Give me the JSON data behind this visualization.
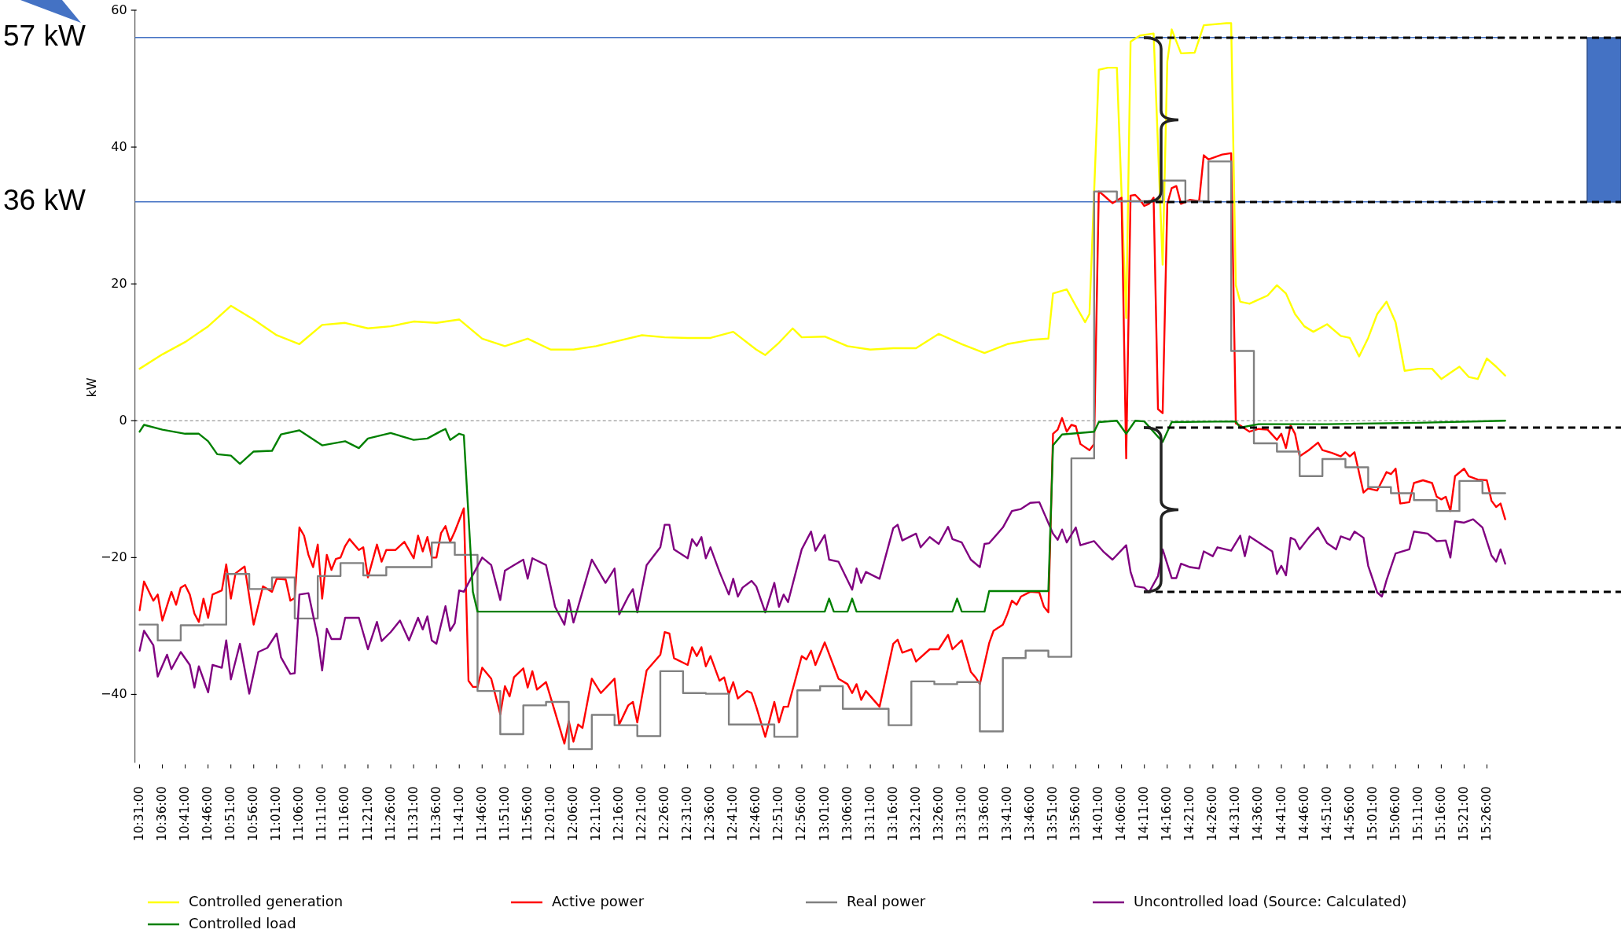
{
  "chart_data": {
    "type": "line",
    "ylabel": "kW",
    "xlim": [
      10.5,
      15.5
    ],
    "ylim": [
      -50,
      60
    ],
    "yticks": [
      {
        "value": -40,
        "label": "−40"
      },
      {
        "value": -20,
        "label": "−20"
      },
      0,
      20,
      40,
      60
    ],
    "xticks": [
      {
        "value": 10.516667,
        "label": "10:31:00"
      },
      {
        "value": 10.6,
        "label": "10:36:00"
      },
      {
        "value": 10.683333,
        "label": "10:41:00"
      },
      {
        "value": 10.766667,
        "label": "10:46:00"
      },
      {
        "value": 10.85,
        "label": "10:51:00"
      },
      {
        "value": 10.933333,
        "label": "10:56:00"
      },
      {
        "value": 11.016667,
        "label": "11:01:00"
      },
      {
        "value": 11.1,
        "label": "11:06:00"
      },
      {
        "value": 11.183333,
        "label": "11:11:00"
      },
      {
        "value": 11.266667,
        "label": "11:16:00"
      },
      {
        "value": 11.35,
        "label": "11:21:00"
      },
      {
        "value": 11.433333,
        "label": "11:26:00"
      },
      {
        "value": 11.516667,
        "label": "11:31:00"
      },
      {
        "value": 11.6,
        "label": "11:36:00"
      },
      {
        "value": 11.683333,
        "label": "11:41:00"
      },
      {
        "value": 11.766667,
        "label": "11:46:00"
      },
      {
        "value": 11.85,
        "label": "11:51:00"
      },
      {
        "value": 11.933333,
        "label": "11:56:00"
      },
      {
        "value": 12.016667,
        "label": "12:01:00"
      },
      {
        "value": 12.1,
        "label": "12:06:00"
      },
      {
        "value": 12.183333,
        "label": "12:11:00"
      },
      {
        "value": 12.266667,
        "label": "12:16:00"
      },
      {
        "value": 12.35,
        "label": "12:21:00"
      },
      {
        "value": 12.433333,
        "label": "12:26:00"
      },
      {
        "value": 12.516667,
        "label": "12:31:00"
      },
      {
        "value": 12.6,
        "label": "12:36:00"
      },
      {
        "value": 12.683333,
        "label": "12:41:00"
      },
      {
        "value": 12.766667,
        "label": "12:46:00"
      },
      {
        "value": 12.85,
        "label": "12:51:00"
      },
      {
        "value": 12.933333,
        "label": "12:56:00"
      },
      {
        "value": 13.016667,
        "label": "13:01:00"
      },
      {
        "value": 13.1,
        "label": "13:06:00"
      },
      {
        "value": 13.183333,
        "label": "13:11:00"
      },
      {
        "value": 13.266667,
        "label": "13:16:00"
      },
      {
        "value": 13.35,
        "label": "13:21:00"
      },
      {
        "value": 13.433333,
        "label": "13:26:00"
      },
      {
        "value": 13.516667,
        "label": "13:31:00"
      },
      {
        "value": 13.6,
        "label": "13:36:00"
      },
      {
        "value": 13.683333,
        "label": "13:41:00"
      },
      {
        "value": 13.766667,
        "label": "13:46:00"
      },
      {
        "value": 13.85,
        "label": "13:51:00"
      },
      {
        "value": 13.933333,
        "label": "13:56:00"
      },
      {
        "value": 14.016667,
        "label": "14:01:00"
      },
      {
        "value": 14.1,
        "label": "14:06:00"
      },
      {
        "value": 14.183333,
        "label": "14:11:00"
      },
      {
        "value": 14.266667,
        "label": "14:16:00"
      },
      {
        "value": 14.35,
        "label": "14:21:00"
      },
      {
        "value": 14.433333,
        "label": "14:26:00"
      },
      {
        "value": 14.516667,
        "label": "14:31:00"
      },
      {
        "value": 14.6,
        "label": "14:36:00"
      },
      {
        "value": 14.683333,
        "label": "14:41:00"
      },
      {
        "value": 14.766667,
        "label": "14:46:00"
      },
      {
        "value": 14.85,
        "label": "14:51:00"
      },
      {
        "value": 14.933333,
        "label": "14:56:00"
      },
      {
        "value": 15.016667,
        "label": "15:01:00"
      },
      {
        "value": 15.1,
        "label": "15:06:00"
      },
      {
        "value": 15.183333,
        "label": "15:11:00"
      },
      {
        "value": 15.266667,
        "label": "15:16:00"
      },
      {
        "value": 15.35,
        "label": "15:21:00"
      },
      {
        "value": 15.433333,
        "label": "15:26:00"
      }
    ],
    "legend": "bottom",
    "series": [
      {
        "name": "Controlled generation",
        "color": "#ffff00",
        "x": [
          10.517,
          10.6,
          10.683,
          10.767,
          10.85,
          10.933,
          11.017,
          11.1,
          11.183,
          11.267,
          11.35,
          11.433,
          11.517,
          11.6,
          11.683,
          11.767,
          11.85,
          11.933,
          12.017,
          12.1,
          12.183,
          12.267,
          12.35,
          12.433,
          12.517,
          12.6,
          12.683,
          12.767,
          12.8,
          12.85,
          12.9,
          12.933,
          13.017,
          13.1,
          13.183,
          13.267,
          13.35,
          13.433,
          13.517,
          13.6,
          13.683,
          13.767,
          13.833,
          13.85,
          13.9,
          13.933,
          13.967,
          13.983,
          14.017,
          14.05,
          14.083,
          14.117,
          14.133,
          14.167,
          14.217,
          14.25,
          14.267,
          14.283,
          14.317,
          14.367,
          14.4,
          14.483,
          14.5,
          14.517,
          14.533,
          14.567,
          14.6,
          14.633,
          14.667,
          14.7,
          14.733,
          14.767,
          14.8,
          14.85,
          14.9,
          14.933,
          14.967,
          15,
          15.033,
          15.067,
          15.1,
          15.133,
          15.183,
          15.233,
          15.267,
          15.3,
          15.333,
          15.367,
          15.4,
          15.433,
          15.467,
          15.5
        ],
        "values": [
          7.6,
          9.7,
          11.5,
          13.8,
          16.8,
          14.8,
          12.5,
          11.2,
          14.0,
          14.3,
          13.5,
          13.8,
          14.5,
          14.3,
          14.8,
          12.0,
          10.9,
          12.0,
          10.4,
          10.4,
          10.9,
          11.7,
          12.5,
          12.2,
          12.1,
          12.1,
          13.0,
          10.4,
          9.6,
          11.4,
          13.5,
          12.2,
          12.3,
          10.9,
          10.4,
          10.6,
          10.6,
          12.7,
          11.2,
          9.9,
          11.2,
          11.8,
          12.0,
          18.6,
          19.2,
          16.8,
          14.4,
          15.6,
          51.3,
          51.6,
          51.6,
          15.0,
          55.4,
          56.3,
          56.6,
          22.8,
          52.5,
          57.2,
          53.7,
          53.8,
          57.8,
          58.1,
          58.1,
          19.8,
          17.4,
          17.1,
          17.7,
          18.3,
          19.8,
          18.6,
          15.6,
          13.8,
          13.0,
          14.1,
          12.4,
          12.1,
          9.4,
          12.1,
          15.6,
          17.4,
          14.4,
          7.3,
          7.6,
          7.6,
          6.1,
          7.0,
          7.9,
          6.4,
          6.1,
          9.1,
          7.9,
          6.6
        ]
      },
      {
        "name": "Active power",
        "color": "#ff0000",
        "x": [
          10.517,
          10.533,
          10.567,
          10.583,
          10.6,
          10.633,
          10.65,
          10.667,
          10.683,
          10.7,
          10.717,
          10.733,
          10.75,
          10.767,
          10.783,
          10.817,
          10.833,
          10.85,
          10.867,
          10.9,
          10.933,
          10.967,
          11.0,
          11.017,
          11.05,
          11.067,
          11.083,
          11.1,
          11.117,
          11.133,
          11.15,
          11.167,
          11.183,
          11.2,
          11.217,
          11.233,
          11.25,
          11.267,
          11.283,
          11.317,
          11.333,
          11.35,
          11.383,
          11.4,
          11.417,
          11.45,
          11.483,
          11.517,
          11.533,
          11.55,
          11.567,
          11.583,
          11.6,
          11.617,
          11.633,
          11.65,
          11.667,
          11.7,
          11.717,
          11.733,
          11.75,
          11.767,
          11.8,
          11.833,
          11.85,
          11.867,
          11.883,
          11.917,
          11.933,
          11.95,
          11.967,
          12.0,
          12.033,
          12.067,
          12.083,
          12.1,
          12.117,
          12.133,
          12.167,
          12.2,
          12.25,
          12.267,
          12.3,
          12.317,
          12.333,
          12.367,
          12.417,
          12.433,
          12.45,
          12.467,
          12.517,
          12.533,
          12.55,
          12.567,
          12.583,
          12.6,
          12.633,
          12.65,
          12.667,
          12.683,
          12.7,
          12.733,
          12.75,
          12.767,
          12.8,
          12.833,
          12.85,
          12.867,
          12.883,
          12.933,
          12.95,
          12.967,
          12.983,
          13.017,
          13.05,
          13.067,
          13.1,
          13.117,
          13.133,
          13.15,
          13.167,
          13.217,
          13.267,
          13.283,
          13.3,
          13.333,
          13.35,
          13.4,
          13.433,
          13.467,
          13.483,
          13.517,
          13.55,
          13.567,
          13.583,
          13.617,
          13.633,
          13.667,
          13.683,
          13.7,
          13.717,
          13.733,
          13.767,
          13.8,
          13.817,
          13.833,
          13.85,
          13.867,
          13.883,
          13.9,
          13.917,
          13.933,
          13.95,
          13.983,
          14.0,
          14.017,
          14.033,
          14.067,
          14.1,
          14.117,
          14.133,
          14.15,
          14.167,
          14.183,
          14.2,
          14.217,
          14.233,
          14.25,
          14.267,
          14.283,
          14.3,
          14.317,
          14.35,
          14.383,
          14.4,
          14.417,
          14.467,
          14.5,
          14.517,
          14.533,
          14.567,
          14.6,
          14.633,
          14.667,
          14.683,
          14.7,
          14.717,
          14.733,
          14.75,
          14.783,
          14.817,
          14.833,
          14.867,
          14.9,
          14.917,
          14.933,
          14.95,
          14.983,
          15.0,
          15.033,
          15.067,
          15.083,
          15.1,
          15.117,
          15.15,
          15.167,
          15.2,
          15.233,
          15.25,
          15.267,
          15.283,
          15.3,
          15.317,
          15.35,
          15.367,
          15.4,
          15.433,
          15.45,
          15.467,
          15.483,
          15.5
        ],
        "values": [
          -27.7,
          -23.5,
          -26.3,
          -25.4,
          -29.2,
          -25.0,
          -26.9,
          -24.4,
          -24.0,
          -25.4,
          -28.2,
          -29.4,
          -26.0,
          -28.8,
          -25.4,
          -24.8,
          -21.0,
          -26.0,
          -22.3,
          -21.3,
          -29.8,
          -24.2,
          -25.0,
          -23.1,
          -23.2,
          -26.3,
          -25.9,
          -15.6,
          -16.8,
          -19.6,
          -21.4,
          -18.1,
          -26.0,
          -19.6,
          -21.8,
          -20.2,
          -20.0,
          -18.3,
          -17.3,
          -18.9,
          -18.5,
          -22.9,
          -18.1,
          -20.6,
          -18.9,
          -18.9,
          -17.7,
          -20.1,
          -16.8,
          -19.1,
          -17.0,
          -20.0,
          -20.0,
          -16.4,
          -15.4,
          -17.7,
          -16.2,
          -12.8,
          -38.0,
          -38.9,
          -38.9,
          -36.1,
          -37.7,
          -42.9,
          -38.8,
          -40.3,
          -37.5,
          -36.2,
          -39.0,
          -36.6,
          -39.3,
          -38.2,
          -42.6,
          -47.2,
          -43.9,
          -46.9,
          -44.4,
          -44.9,
          -37.7,
          -39.8,
          -37.7,
          -44.4,
          -41.6,
          -41.1,
          -44.1,
          -36.5,
          -34.2,
          -30.9,
          -31.1,
          -34.7,
          -35.7,
          -33.1,
          -34.4,
          -33.1,
          -35.9,
          -34.4,
          -38.0,
          -37.5,
          -40.0,
          -38.2,
          -40.6,
          -39.5,
          -39.8,
          -41.8,
          -46.2,
          -41.1,
          -44.1,
          -41.8,
          -41.8,
          -34.4,
          -34.9,
          -33.6,
          -35.7,
          -32.4,
          -35.9,
          -37.7,
          -38.5,
          -39.8,
          -38.5,
          -40.8,
          -39.5,
          -41.8,
          -32.6,
          -32.0,
          -33.9,
          -33.4,
          -35.2,
          -33.4,
          -33.4,
          -31.3,
          -33.4,
          -32.1,
          -36.7,
          -37.5,
          -38.5,
          -32.5,
          -30.7,
          -29.8,
          -28.3,
          -26.3,
          -26.9,
          -25.7,
          -25.0,
          -25.1,
          -27.2,
          -28.0,
          -1.9,
          -1.3,
          0.4,
          -1.6,
          -0.6,
          -0.8,
          -3.4,
          -4.3,
          -3.4,
          33.5,
          33.0,
          31.8,
          32.6,
          -5.5,
          32.9,
          33.0,
          32.3,
          31.4,
          31.7,
          32.6,
          1.7,
          1.1,
          31.7,
          34.0,
          34.3,
          31.7,
          32.3,
          32.1,
          38.8,
          38.2,
          38.9,
          39.1,
          -0.4,
          -0.7,
          -1.6,
          -1.2,
          -1.3,
          -2.8,
          -1.9,
          -4.0,
          -0.7,
          -1.9,
          -5.2,
          -4.3,
          -3.2,
          -4.3,
          -4.7,
          -5.2,
          -4.6,
          -5.2,
          -4.6,
          -10.5,
          -9.9,
          -10.2,
          -7.5,
          -7.8,
          -7.0,
          -12.1,
          -11.9,
          -9.1,
          -8.7,
          -9.1,
          -11.1,
          -11.5,
          -11.1,
          -13.2,
          -8.1,
          -7.0,
          -8.1,
          -8.6,
          -8.7,
          -11.7,
          -12.6,
          -12.1,
          -14.4
        ]
      },
      {
        "name": "Real power",
        "type": "step",
        "color": "#808080",
        "x": [
          10.517,
          10.583,
          10.667,
          10.75,
          10.833,
          10.917,
          11,
          11.083,
          11.167,
          11.25,
          11.333,
          11.417,
          11.5,
          11.583,
          11.667,
          11.75,
          11.833,
          11.917,
          12,
          12.083,
          12.167,
          12.25,
          12.333,
          12.417,
          12.5,
          12.583,
          12.667,
          12.75,
          12.833,
          12.917,
          13,
          13.083,
          13.167,
          13.25,
          13.333,
          13.417,
          13.5,
          13.583,
          13.667,
          13.75,
          13.833,
          13.917,
          14,
          14.083,
          14.167,
          14.25,
          14.333,
          14.417,
          14.5,
          14.583,
          14.667,
          14.75,
          14.833,
          14.917,
          15,
          15.083,
          15.167,
          15.25,
          15.333,
          15.417,
          15.5
        ],
        "values": [
          -29.8,
          -32.1,
          -29.9,
          -29.8,
          -22.4,
          -24.6,
          -22.9,
          -28.9,
          -22.7,
          -20.8,
          -22.6,
          -21.4,
          -21.4,
          -17.8,
          -19.6,
          -39.5,
          -45.8,
          -41.6,
          -41.1,
          -48.0,
          -43.0,
          -44.5,
          -46.1,
          -36.6,
          -39.8,
          -39.9,
          -44.4,
          -44.4,
          -46.2,
          -39.4,
          -38.8,
          -42.1,
          -42.1,
          -44.5,
          -38.1,
          -38.5,
          -38.2,
          -45.4,
          -34.7,
          -33.6,
          -34.5,
          -5.5,
          33.5,
          32.1,
          32.1,
          35.1,
          32.1,
          37.9,
          10.2,
          -3.3,
          -4.5,
          -8.1,
          -5.6,
          -6.8,
          -9.7,
          -10.6,
          -11.6,
          -13.2,
          -8.8,
          -10.6,
          -10.6
        ]
      },
      {
        "name": "Uncontrolled load (Source: Calculated)",
        "color": "#800080",
        "x": [
          10.517,
          10.533,
          10.567,
          10.583,
          10.617,
          10.633,
          10.667,
          10.7,
          10.717,
          10.733,
          10.767,
          10.783,
          10.817,
          10.833,
          10.85,
          10.883,
          10.917,
          10.95,
          10.983,
          11.017,
          11.033,
          11.067,
          11.083,
          11.1,
          11.133,
          11.167,
          11.183,
          11.2,
          11.217,
          11.25,
          11.267,
          11.317,
          11.35,
          11.383,
          11.4,
          11.433,
          11.467,
          11.5,
          11.533,
          11.55,
          11.567,
          11.583,
          11.6,
          11.633,
          11.65,
          11.667,
          11.683,
          11.7,
          11.717,
          11.767,
          11.8,
          11.833,
          11.85,
          11.883,
          11.917,
          11.933,
          11.95,
          12.0,
          12.033,
          12.067,
          12.083,
          12.1,
          12.117,
          12.167,
          12.217,
          12.25,
          12.267,
          12.3,
          12.317,
          12.333,
          12.367,
          12.417,
          12.433,
          12.45,
          12.467,
          12.517,
          12.533,
          12.55,
          12.567,
          12.583,
          12.6,
          12.633,
          12.667,
          12.683,
          12.7,
          12.717,
          12.75,
          12.767,
          12.8,
          12.833,
          12.85,
          12.867,
          12.883,
          12.933,
          12.967,
          12.983,
          13.017,
          13.033,
          13.067,
          13.117,
          13.133,
          13.15,
          13.167,
          13.217,
          13.267,
          13.283,
          13.3,
          13.35,
          13.367,
          13.4,
          13.433,
          13.467,
          13.483,
          13.517,
          13.55,
          13.583,
          13.6,
          13.617,
          13.667,
          13.7,
          13.733,
          13.767,
          13.8,
          13.85,
          13.867,
          13.883,
          13.9,
          13.933,
          13.95,
          14.0,
          14.033,
          14.067,
          14.117,
          14.133,
          14.15,
          14.183,
          14.2,
          14.233,
          14.25,
          14.283,
          14.3,
          14.317,
          14.35,
          14.383,
          14.4,
          14.433,
          14.45,
          14.5,
          14.533,
          14.55,
          14.567,
          14.65,
          14.667,
          14.683,
          14.7,
          14.717,
          14.733,
          14.75,
          14.783,
          14.817,
          14.85,
          14.883,
          14.9,
          14.933,
          14.95,
          14.983,
          15.0,
          15.033,
          15.05,
          15.067,
          15.1,
          15.15,
          15.167,
          15.217,
          15.25,
          15.283,
          15.3,
          15.317,
          15.35,
          15.383,
          15.417,
          15.45,
          15.467,
          15.483,
          15.5
        ],
        "values": [
          -33.6,
          -30.7,
          -32.8,
          -37.4,
          -34.2,
          -36.3,
          -33.8,
          -35.7,
          -39.0,
          -35.9,
          -39.7,
          -35.7,
          -36.1,
          -32.1,
          -37.8,
          -32.6,
          -39.9,
          -33.8,
          -33.2,
          -31.1,
          -34.6,
          -37.0,
          -36.9,
          -25.4,
          -25.2,
          -31.7,
          -36.5,
          -30.4,
          -31.9,
          -31.9,
          -28.8,
          -28.8,
          -33.4,
          -29.4,
          -32.2,
          -30.9,
          -29.2,
          -32.1,
          -28.8,
          -30.5,
          -28.6,
          -32.1,
          -32.6,
          -27.1,
          -30.7,
          -29.6,
          -24.8,
          -25.0,
          -23.7,
          -20.0,
          -21.1,
          -26.2,
          -21.9,
          -21.1,
          -20.3,
          -23.1,
          -20.1,
          -21.1,
          -27.2,
          -29.8,
          -26.2,
          -29.5,
          -27.2,
          -20.3,
          -23.7,
          -21.6,
          -28.3,
          -25.7,
          -24.6,
          -28.0,
          -21.1,
          -18.5,
          -15.2,
          -15.2,
          -18.8,
          -20.1,
          -17.3,
          -18.3,
          -17.0,
          -20.1,
          -18.5,
          -22.1,
          -25.4,
          -23.1,
          -25.7,
          -24.4,
          -23.4,
          -24.2,
          -28.0,
          -23.7,
          -27.2,
          -25.4,
          -26.5,
          -18.8,
          -16.2,
          -19.0,
          -16.7,
          -20.3,
          -20.6,
          -24.7,
          -21.6,
          -23.7,
          -22.1,
          -23.1,
          -15.7,
          -15.2,
          -17.5,
          -16.5,
          -18.5,
          -17.0,
          -18.0,
          -15.5,
          -17.3,
          -17.8,
          -20.3,
          -21.4,
          -18.0,
          -17.9,
          -15.6,
          -13.2,
          -12.9,
          -12.0,
          -11.9,
          -16.5,
          -17.4,
          -15.9,
          -17.8,
          -15.6,
          -18.2,
          -17.6,
          -19.1,
          -20.3,
          -18.2,
          -22.1,
          -24.2,
          -24.4,
          -25.1,
          -22.7,
          -18.8,
          -23.0,
          -23.0,
          -20.9,
          -21.4,
          -21.6,
          -19.1,
          -19.8,
          -18.5,
          -19.0,
          -16.8,
          -19.8,
          -16.9,
          -19.1,
          -22.4,
          -21.2,
          -22.6,
          -17.1,
          -17.4,
          -18.8,
          -17.1,
          -15.6,
          -17.9,
          -18.8,
          -16.9,
          -17.4,
          -16.2,
          -17.1,
          -21.2,
          -25.1,
          -25.7,
          -23.3,
          -19.4,
          -18.8,
          -16.2,
          -16.5,
          -17.6,
          -17.5,
          -20.0,
          -14.7,
          -14.9,
          -14.4,
          -15.6,
          -19.7,
          -20.6,
          -18.8,
          -20.9
        ]
      },
      {
        "name": "Controlled load",
        "color": "#008000",
        "x": [
          10.517,
          10.533,
          10.6,
          10.683,
          10.733,
          10.767,
          10.8,
          10.85,
          10.883,
          10.933,
          11.0,
          11.033,
          11.1,
          11.183,
          11.267,
          11.317,
          11.35,
          11.433,
          11.517,
          11.567,
          11.617,
          11.633,
          11.65,
          11.683,
          11.7,
          11.733,
          11.75,
          12.183,
          13.017,
          13.033,
          13.05,
          13.1,
          13.117,
          13.133,
          13.483,
          13.5,
          13.517,
          13.6,
          13.617,
          13.833,
          13.85,
          13.883,
          13.917,
          14.0,
          14.017,
          14.083,
          14.117,
          14.15,
          14.183,
          14.25,
          14.283,
          14.517,
          14.533,
          14.6,
          14.85,
          15.183,
          15.5
        ],
        "values": [
          -1.6,
          -0.6,
          -1.3,
          -1.9,
          -1.9,
          -3.0,
          -4.9,
          -5.1,
          -6.3,
          -4.5,
          -4.4,
          -2.0,
          -1.4,
          -3.6,
          -3.0,
          -4.0,
          -2.6,
          -1.8,
          -2.8,
          -2.6,
          -1.5,
          -1.2,
          -2.8,
          -1.9,
          -2.1,
          -25.0,
          -27.9,
          -27.9,
          -27.9,
          -26.0,
          -27.9,
          -27.9,
          -26.0,
          -27.9,
          -27.9,
          -26.0,
          -27.9,
          -27.9,
          -24.9,
          -24.9,
          -3.6,
          -2.0,
          -1.9,
          -1.6,
          -0.2,
          0,
          -1.9,
          0,
          -0.1,
          -3.1,
          -0.2,
          -0.1,
          -1.0,
          -0.5,
          -0.5,
          -0.3,
          0
        ]
      }
    ],
    "ref_lines": [
      {
        "axis": "y",
        "value": 56,
        "label": "57 kW",
        "color": "#4472c4"
      },
      {
        "axis": "y",
        "value": 32,
        "label": "36 kW",
        "color": "#4472c4"
      },
      {
        "axis": "y",
        "value": 0,
        "color": "#808080",
        "line_style": "dashed"
      }
    ]
  }
}
